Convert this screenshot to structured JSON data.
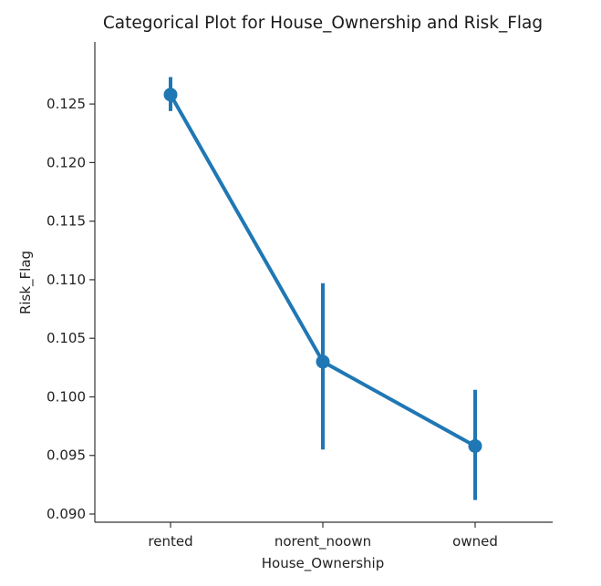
{
  "chart_data": {
    "type": "line",
    "title": "Categorical Plot for House_Ownership and Risk_Flag",
    "xlabel": "House_Ownership",
    "ylabel": "Risk_Flag",
    "categories": [
      "rented",
      "norent_noown",
      "owned"
    ],
    "values": [
      0.1258,
      0.103,
      0.0958
    ],
    "error_low": [
      0.1244,
      0.0955,
      0.0912
    ],
    "error_high": [
      0.1273,
      0.1097,
      0.1006
    ],
    "ylim": [
      0.0893,
      0.1303
    ],
    "yticks": [
      0.09,
      0.095,
      0.1,
      0.105,
      0.11,
      0.115,
      0.12,
      0.125
    ],
    "ytick_labels": [
      "0.090",
      "0.095",
      "0.100",
      "0.105",
      "0.110",
      "0.115",
      "0.120",
      "0.125"
    ],
    "grid": false,
    "legend": "none",
    "color": "#1f77b4"
  }
}
